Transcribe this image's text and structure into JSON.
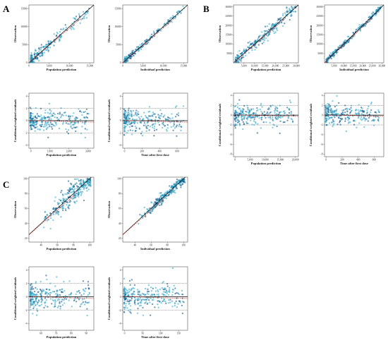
{
  "figure": {
    "panels": [
      {
        "letter": "A"
      },
      {
        "letter": "B"
      },
      {
        "letter": "C"
      }
    ]
  },
  "colors": {
    "point": "#2aa9c9",
    "point_dark": "#0e4f86",
    "identity_line": "#000000",
    "loess_line": "#e0392b",
    "zero_line": "#000000",
    "band_line": "#555555"
  },
  "chart_data": [
    {
      "id": "A-obs-pred",
      "panel": "A",
      "type": "scatter",
      "xlabel": "Population prediction",
      "ylabel": "Observation",
      "xticks": [
        0,
        5000,
        10000,
        15000
      ],
      "xticklabels": [
        "0",
        "5,000",
        "10,000",
        "15,000"
      ],
      "yticks": [
        0,
        5000,
        10000,
        15000
      ],
      "yticklabels": [
        "0",
        "5000",
        "10000",
        "15000"
      ],
      "xlim": [
        0,
        16000
      ],
      "ylim": [
        0,
        16000
      ],
      "identity_line": true,
      "loess": true,
      "grid": false
    },
    {
      "id": "A-obs-ipred",
      "panel": "A",
      "type": "scatter",
      "xlabel": "Individual prediction",
      "ylabel": "Observation",
      "xticks": [
        0,
        5000,
        10000,
        15000
      ],
      "xticklabels": [
        "0",
        "5,000",
        "10,000",
        "15,000"
      ],
      "yticks": [
        0,
        5000,
        10000,
        15000
      ],
      "yticklabels": [
        "0",
        "5000",
        "10000",
        "15000"
      ],
      "xlim": [
        0,
        16000
      ],
      "ylim": [
        0,
        16000
      ],
      "identity_line": true,
      "loess": true,
      "grid": false
    },
    {
      "id": "A-cwres-pred",
      "panel": "A",
      "type": "scatter",
      "xlabel": "Population prediction",
      "ylabel": "Conditional weighted residuals",
      "xticks": [
        0,
        1000,
        2000,
        3000
      ],
      "xticklabels": [
        "0",
        "1,000",
        "2,000",
        "3,000"
      ],
      "yticks": [
        -4,
        -2,
        0,
        2,
        4
      ],
      "yticklabels": [
        "-4",
        "-2",
        "0",
        "2",
        "4"
      ],
      "xlim": [
        -100,
        3300
      ],
      "ylim": [
        -4.5,
        4.5
      ],
      "zero_line": true,
      "bands": [
        -2,
        2
      ],
      "loess": true
    },
    {
      "id": "A-cwres-time",
      "panel": "A",
      "type": "scatter",
      "xlabel": "Time after first dose",
      "ylabel": "Conditional weighted residuals",
      "xticks": [
        0,
        200,
        400,
        600
      ],
      "xticklabels": [
        "0",
        "200",
        "400",
        "600"
      ],
      "yticks": [
        -4,
        -2,
        0,
        2,
        4
      ],
      "yticklabels": [
        "-4",
        "-2",
        "0",
        "2",
        "4"
      ],
      "xlim": [
        -20,
        720
      ],
      "ylim": [
        -4.5,
        4.5
      ],
      "zero_line": true,
      "bands": [
        -2,
        2
      ],
      "loess": true
    },
    {
      "id": "B-obs-pred",
      "panel": "B",
      "type": "scatter",
      "xlabel": "Population prediction",
      "ylabel": "Observation",
      "xticks": [
        5000,
        10000,
        15000,
        20000,
        25000,
        30000
      ],
      "xticklabels": [
        "5,000",
        "10,000",
        "15,000",
        "20,000",
        "25,000",
        "30,000"
      ],
      "yticks": [
        5000,
        10000,
        15000,
        20000,
        25000,
        30000
      ],
      "yticklabels": [
        "5000",
        "10000",
        "15000",
        "20000",
        "25000",
        "30000"
      ],
      "xlim": [
        0,
        31000
      ],
      "ylim": [
        0,
        31000
      ],
      "identity_line": true,
      "loess": true
    },
    {
      "id": "B-obs-ipred",
      "panel": "B",
      "type": "scatter",
      "xlabel": "Individual prediction",
      "ylabel": "Observation",
      "xticks": [
        5000,
        10000,
        15000,
        20000,
        25000,
        30000
      ],
      "xticklabels": [
        "5,000",
        "10,000",
        "15,000",
        "20,000",
        "25,000",
        "30,000"
      ],
      "yticks": [
        5000,
        10000,
        15000,
        20000,
        25000,
        30000
      ],
      "yticklabels": [
        "5000",
        "10000",
        "15000",
        "20000",
        "25000",
        "30000"
      ],
      "xlim": [
        0,
        31000
      ],
      "ylim": [
        0,
        31000
      ],
      "identity_line": true,
      "loess": true
    },
    {
      "id": "B-cwres-pred",
      "panel": "B",
      "type": "scatter",
      "xlabel": "Population prediction",
      "ylabel": "Conditional weighted residuals",
      "xticks": [
        0,
        5000,
        10000,
        15000,
        20000
      ],
      "xticklabels": [
        "0",
        "5,000",
        "10,000",
        "15,000",
        "20,000"
      ],
      "yticks": [
        -8,
        -6,
        -4,
        -2,
        0,
        2,
        4
      ],
      "yticklabels": [
        "-8",
        "-6",
        "-4",
        "-2",
        "0",
        "2",
        "4"
      ],
      "xlim": [
        -500,
        21000
      ],
      "ylim": [
        -8.5,
        4.5
      ],
      "zero_line": true,
      "bands": [
        -2,
        2
      ],
      "loess": true
    },
    {
      "id": "B-cwres-time",
      "panel": "B",
      "type": "scatter",
      "xlabel": "Time after first dose",
      "ylabel": "Conditional weighted residuals",
      "xticks": [
        0,
        200,
        400,
        600
      ],
      "xticklabels": [
        "0",
        "200",
        "400",
        "600"
      ],
      "yticks": [
        -8,
        -6,
        -4,
        -2,
        0,
        2,
        4
      ],
      "yticklabels": [
        "-8",
        "-6",
        "-4",
        "-2",
        "0",
        "2",
        "4"
      ],
      "xlim": [
        -20,
        720
      ],
      "ylim": [
        -8.5,
        4.5
      ],
      "zero_line": true,
      "bands": [
        -2,
        2
      ],
      "loess": true
    },
    {
      "id": "C-obs-pred",
      "panel": "C",
      "type": "scatter",
      "xlabel": "Population prediction",
      "ylabel": "Observation",
      "xticks": [
        40,
        60,
        80,
        100
      ],
      "xticklabels": [
        "40",
        "60",
        "80",
        "100"
      ],
      "yticks": [
        20,
        40,
        60,
        80,
        100
      ],
      "yticklabels": [
        "20",
        "40",
        "60",
        "80",
        "100"
      ],
      "xlim": [
        25,
        105
      ],
      "ylim": [
        15,
        102
      ],
      "identity_line": true,
      "loess": true
    },
    {
      "id": "C-obs-ipred",
      "panel": "C",
      "type": "scatter",
      "xlabel": "Individual prediction",
      "ylabel": "Observation",
      "xticks": [
        40,
        60,
        80,
        100
      ],
      "xticklabels": [
        "40",
        "60",
        "80",
        "100"
      ],
      "yticks": [
        20,
        40,
        60,
        80,
        100
      ],
      "yticklabels": [
        "20",
        "40",
        "60",
        "80",
        "100"
      ],
      "xlim": [
        25,
        105
      ],
      "ylim": [
        15,
        102
      ],
      "identity_line": true,
      "loess": true
    },
    {
      "id": "C-cwres-pred",
      "panel": "C",
      "type": "scatter",
      "xlabel": "Population prediction",
      "ylabel": "Conditional weighted residuals",
      "xticks": [
        60,
        70,
        80,
        90
      ],
      "xticklabels": [
        "60",
        "70",
        "80",
        "90"
      ],
      "yticks": [
        -4,
        -2,
        0,
        2,
        4
      ],
      "yticklabels": [
        "-4",
        "-2",
        "0",
        "2",
        "4"
      ],
      "xlim": [
        52,
        95
      ],
      "ylim": [
        -5,
        4.5
      ],
      "zero_line": true,
      "bands": [
        -2,
        2
      ],
      "loess": true
    },
    {
      "id": "C-cwres-time",
      "panel": "C",
      "type": "scatter",
      "xlabel": "Time after first dose",
      "ylabel": "Conditional weighted residuals",
      "xticks": [
        0,
        50,
        100,
        150
      ],
      "xticklabels": [
        "0",
        "50",
        "100",
        "150"
      ],
      "yticks": [
        -4,
        -2,
        0,
        2,
        4
      ],
      "yticklabels": [
        "-4",
        "-2",
        "0",
        "2",
        "4"
      ],
      "xlim": [
        -5,
        175
      ],
      "ylim": [
        -5,
        4.5
      ],
      "zero_line": true,
      "bands": [
        -2,
        2
      ],
      "loess": true
    }
  ]
}
